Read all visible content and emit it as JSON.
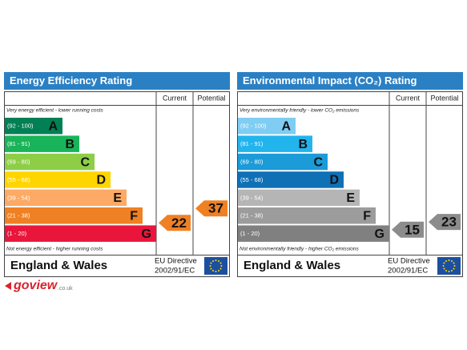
{
  "panels": [
    {
      "title": "Energy Efficiency Rating",
      "header_color": "#2b80c3",
      "columns": [
        "Current",
        "Potential"
      ],
      "top_note": "Very energy efficient - lower running costs",
      "bottom_note": "Not energy efficient - higher running costs",
      "bands": [
        {
          "range": "(92 - 100)",
          "letter": "A",
          "color": "#008054"
        },
        {
          "range": "(81 - 91)",
          "letter": "B",
          "color": "#19b459"
        },
        {
          "range": "(69 - 80)",
          "letter": "C",
          "color": "#8dce46"
        },
        {
          "range": "(55 - 68)",
          "letter": "D",
          "color": "#ffd500"
        },
        {
          "range": "(39 - 54)",
          "letter": "E",
          "color": "#fcaa65"
        },
        {
          "range": "(21 - 38)",
          "letter": "F",
          "color": "#ef8023"
        },
        {
          "range": "(1 - 20)",
          "letter": "G",
          "color": "#e9153b"
        }
      ],
      "current": 22,
      "potential": 37,
      "badge_color": "#ef8023",
      "region": "England & Wales",
      "directive": [
        "EU Directive",
        "2002/91/EC"
      ]
    },
    {
      "title": "Environmental Impact (CO₂) Rating",
      "header_color": "#2b80c3",
      "columns": [
        "Current",
        "Potential"
      ],
      "top_note": "Very environmentally friendly - lower CO₂ emissions",
      "bottom_note": "Not environmentally friendly - higher CO₂ emissions",
      "bands": [
        {
          "range": "(92 - 100)",
          "letter": "A",
          "color": "#7fcdf3"
        },
        {
          "range": "(81 - 91)",
          "letter": "B",
          "color": "#22b4ec"
        },
        {
          "range": "(69 - 80)",
          "letter": "C",
          "color": "#1b9bd8"
        },
        {
          "range": "(55 - 68)",
          "letter": "D",
          "color": "#0f70b6"
        },
        {
          "range": "(39 - 54)",
          "letter": "E",
          "color": "#b5b5b5"
        },
        {
          "range": "(21 - 38)",
          "letter": "F",
          "color": "#9c9c9c"
        },
        {
          "range": "(1 - 20)",
          "letter": "G",
          "color": "#808080"
        }
      ],
      "current": 15,
      "potential": 23,
      "badge_color": "#8c8c8c",
      "region": "England & Wales",
      "directive": [
        "EU Directive",
        "2002/91/EC"
      ]
    }
  ],
  "logo": {
    "brand": "goview",
    "suffix": ".co.uk"
  }
}
